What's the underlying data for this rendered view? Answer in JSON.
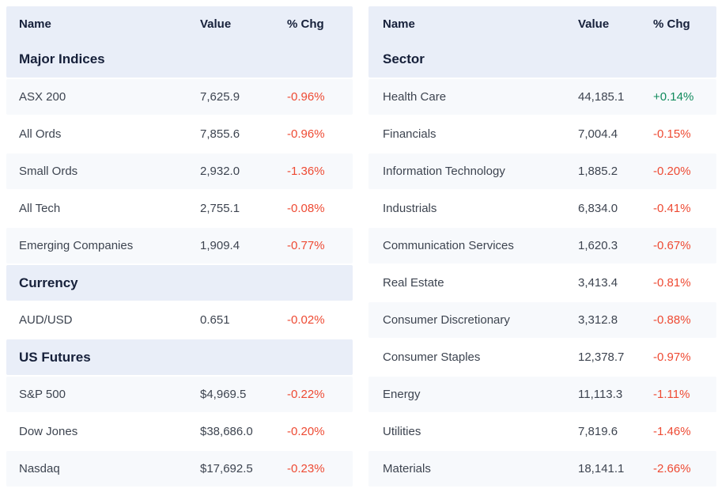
{
  "columns": {
    "name": "Name",
    "value": "Value",
    "chg": "% Chg"
  },
  "colors": {
    "header_bg": "#e9eef8",
    "stripe_bg": "#f7f9fc",
    "row_bg": "#ffffff",
    "positive": "#108a5c",
    "negative": "#ee4a33",
    "heading_text": "#16203a",
    "body_text": "#3d4450"
  },
  "tables": [
    {
      "name": "markets",
      "sections": [
        {
          "title": "Major Indices",
          "rows": [
            {
              "name": "ASX 200",
              "value": "7,625.9",
              "chg": "-0.96%",
              "direction": "down"
            },
            {
              "name": "All Ords",
              "value": "7,855.6",
              "chg": "-0.96%",
              "direction": "down"
            },
            {
              "name": "Small Ords",
              "value": "2,932.0",
              "chg": "-1.36%",
              "direction": "down"
            },
            {
              "name": "All Tech",
              "value": "2,755.1",
              "chg": "-0.08%",
              "direction": "down"
            },
            {
              "name": "Emerging Companies",
              "value": "1,909.4",
              "chg": "-0.77%",
              "direction": "down"
            }
          ]
        },
        {
          "title": "Currency",
          "rows": [
            {
              "name": "AUD/USD",
              "value": "0.651",
              "chg": "-0.02%",
              "direction": "down"
            }
          ]
        },
        {
          "title": "US Futures",
          "rows": [
            {
              "name": "S&P 500",
              "value": "$4,969.5",
              "chg": "-0.22%",
              "direction": "down"
            },
            {
              "name": "Dow Jones",
              "value": "$38,686.0",
              "chg": "-0.20%",
              "direction": "down"
            },
            {
              "name": "Nasdaq",
              "value": "$17,692.5",
              "chg": "-0.23%",
              "direction": "down"
            }
          ]
        }
      ]
    },
    {
      "name": "sectors",
      "sections": [
        {
          "title": "Sector",
          "rows": [
            {
              "name": "Health Care",
              "value": "44,185.1",
              "chg": "+0.14%",
              "direction": "up"
            },
            {
              "name": "Financials",
              "value": "7,004.4",
              "chg": "-0.15%",
              "direction": "down"
            },
            {
              "name": "Information Technology",
              "value": "1,885.2",
              "chg": "-0.20%",
              "direction": "down"
            },
            {
              "name": "Industrials",
              "value": "6,834.0",
              "chg": "-0.41%",
              "direction": "down"
            },
            {
              "name": "Communication Services",
              "value": "1,620.3",
              "chg": "-0.67%",
              "direction": "down"
            },
            {
              "name": "Real Estate",
              "value": "3,413.4",
              "chg": "-0.81%",
              "direction": "down"
            },
            {
              "name": "Consumer Discretionary",
              "value": "3,312.8",
              "chg": "-0.88%",
              "direction": "down"
            },
            {
              "name": "Consumer Staples",
              "value": "12,378.7",
              "chg": "-0.97%",
              "direction": "down"
            },
            {
              "name": "Energy",
              "value": "11,113.3",
              "chg": "-1.11%",
              "direction": "down"
            },
            {
              "name": "Utilities",
              "value": "7,819.6",
              "chg": "-1.46%",
              "direction": "down"
            },
            {
              "name": "Materials",
              "value": "18,141.1",
              "chg": "-2.66%",
              "direction": "down"
            }
          ]
        }
      ]
    }
  ]
}
